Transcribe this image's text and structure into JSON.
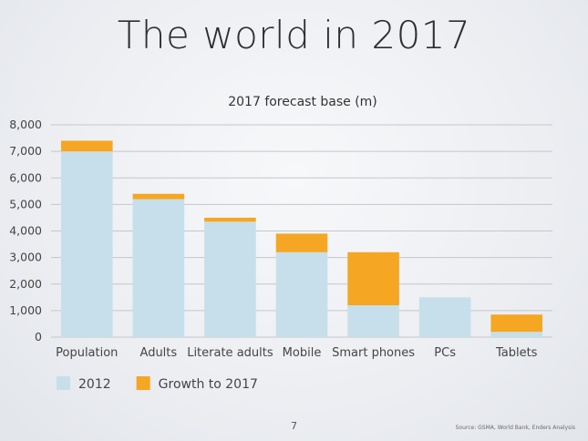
{
  "slide": {
    "title": "The world in 2017",
    "page_number": "7",
    "source": "Source: GSMA, World Bank, Enders Analysis"
  },
  "chart_data": {
    "type": "bar",
    "stacked": true,
    "title": "2017 forecast base (m)",
    "xlabel": "",
    "ylabel": "",
    "categories": [
      "Population",
      "Adults",
      "Literate adults",
      "Mobile",
      "Smart phones",
      "PCs",
      "Tablets"
    ],
    "series": [
      {
        "name": "2012",
        "values": [
          7000,
          5200,
          4350,
          3200,
          1200,
          1500,
          200
        ],
        "color": "#c6dfeb"
      },
      {
        "name": "Growth to 2017",
        "values": [
          400,
          200,
          150,
          700,
          2000,
          0,
          650
        ],
        "color": "#f5a623"
      }
    ],
    "ylim": [
      0,
      8000
    ],
    "yticks": [
      0,
      1000,
      2000,
      3000,
      4000,
      5000,
      6000,
      7000,
      8000
    ],
    "ytick_labels": [
      "0",
      "1,000",
      "2,000",
      "3,000",
      "4,000",
      "5,000",
      "6,000",
      "7,000",
      "8,000"
    ],
    "grid": true,
    "legend_position": "bottom-left"
  }
}
